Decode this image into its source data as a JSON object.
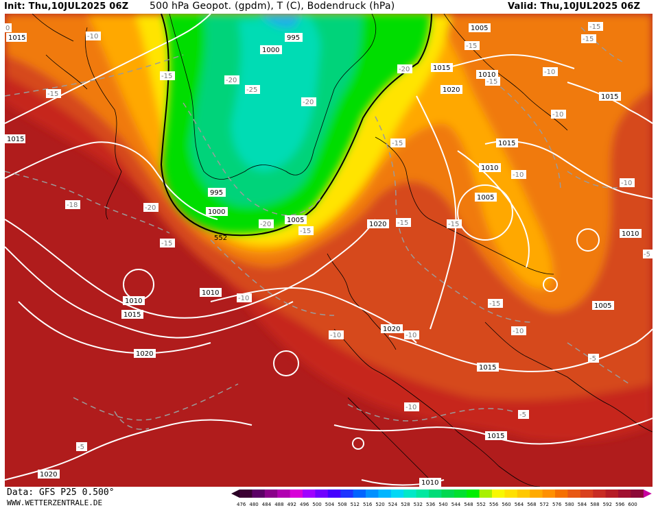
{
  "header": {
    "init": "Init: Thu,10JUL2025 06Z",
    "title": "500 hPa Geopot. (gpdm), T (C), Bodendruck (hPa)",
    "valid": "Valid: Thu,10JUL2025 06Z"
  },
  "footer": {
    "data_source": "Data: GFS P25 0.500°",
    "website": "WWW.WETTERZENTRALE.DE"
  },
  "colors": {
    "geopot_552": "#00dd00",
    "geopot_548": "#00cc55",
    "geopot_560": "#ffff00",
    "geopot_568": "#ffb000",
    "geopot_576": "#f07a10",
    "geopot_584": "#d64a1e",
    "geopot_592": "#b01c1c",
    "geopot_596": "#8e1030",
    "isobar": "#ffffff",
    "isotherm": "#9b9b9b"
  },
  "scale": {
    "values": [
      "476",
      "480",
      "484",
      "488",
      "492",
      "496",
      "500",
      "504",
      "508",
      "512",
      "516",
      "520",
      "524",
      "528",
      "532",
      "536",
      "540",
      "544",
      "548",
      "552",
      "556",
      "560",
      "564",
      "568",
      "572",
      "576",
      "580",
      "584",
      "588",
      "592",
      "596",
      "600"
    ],
    "colors": [
      "#3b0033",
      "#5b0066",
      "#8a008a",
      "#b100b1",
      "#d800d8",
      "#a000ff",
      "#7000ff",
      "#4400ff",
      "#1e34ff",
      "#0064ff",
      "#0090ff",
      "#00b5ff",
      "#00d8f5",
      "#00e8c8",
      "#00e8a0",
      "#00dc78",
      "#00d850",
      "#00e030",
      "#00ee00",
      "#a8f000",
      "#f8f800",
      "#ffe000",
      "#ffc800",
      "#ffaa00",
      "#ff9000",
      "#f57000",
      "#e85814",
      "#d9401e",
      "#c82c24",
      "#b51c26",
      "#a01030",
      "#8c0a38"
    ]
  },
  "isobar_labels": [
    "1015",
    "995",
    "1000",
    "995",
    "1000",
    "1005",
    "1015",
    "1020",
    "1005",
    "1010",
    "1015",
    "1010",
    "1005",
    "1015",
    "1020",
    "1015",
    "1010",
    "1010",
    "1015",
    "1020",
    "1020",
    "1015",
    "1015",
    "1010",
    "1005",
    "1020",
    "1010",
    "1010"
  ],
  "geopot_label": "552",
  "isotherm_labels": [
    "-10",
    "-15",
    "-15",
    "-20",
    "-25",
    "-20",
    "-20",
    "-15",
    "-15",
    "-15",
    "-10",
    "-15",
    "-10",
    "-15",
    "-15",
    "-18",
    "-20",
    "-15",
    "-20",
    "-15",
    "-15",
    "-10",
    "-10",
    "-15",
    "-10",
    "-10",
    "-10",
    "-5",
    "-10",
    "-5",
    "-5",
    "-10",
    "-5",
    "0"
  ]
}
